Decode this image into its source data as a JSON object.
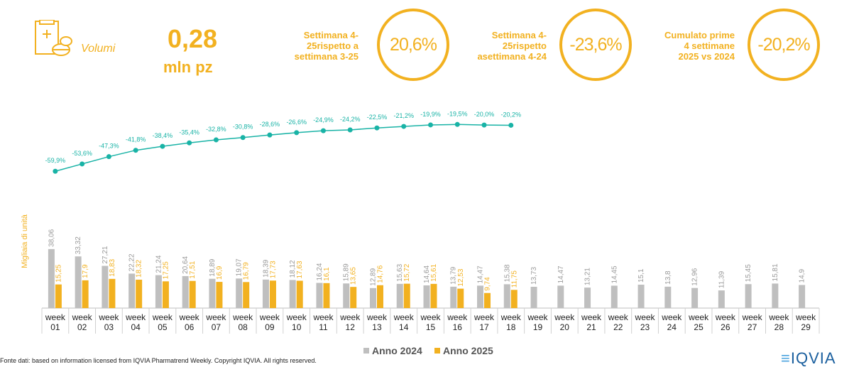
{
  "header": {
    "volume_label": "Volumi",
    "volume_value": "0,28",
    "volume_unit": "mln pz",
    "kpis": [
      {
        "label": "Settimana 4-25rispetto a settimana 3-25",
        "value": "20,6%"
      },
      {
        "label": "Settimana 4-25rispetto asettimana 4-24",
        "value": "-23,6%"
      },
      {
        "label": "Cumulato prime 4 settimane 2025 vs 2024",
        "value": "-20,2%"
      }
    ]
  },
  "chart_data": {
    "type": "bar",
    "y_label": "Migliaia di unità",
    "categories": [
      "week 01",
      "week 02",
      "week 03",
      "week 04",
      "week 05",
      "week 06",
      "week 07",
      "week 08",
      "week 09",
      "week 10",
      "week 11",
      "week 12",
      "week 13",
      "week 14",
      "week 15",
      "week 16",
      "week 17",
      "week 18",
      "week 19",
      "week 20",
      "week 21",
      "week 22",
      "week 23",
      "week 24",
      "week 25",
      "week 26",
      "week 27",
      "week 28",
      "week 29"
    ],
    "ylim": [
      0,
      130
    ],
    "y2lim": [
      -178,
      -4
    ],
    "series": [
      {
        "name": "Anno 2024",
        "color": "#bfbfbf",
        "values": [
          38.06,
          33.32,
          27.21,
          22.22,
          21.24,
          20.64,
          18.89,
          19.07,
          18.39,
          18.12,
          16.24,
          15.89,
          12.89,
          15.63,
          14.64,
          13.79,
          14.47,
          15.38,
          13.73,
          14.47,
          13.21,
          14.45,
          15.1,
          13.8,
          12.96,
          11.39,
          15.45,
          15.81,
          14.9
        ],
        "value_labels": [
          "38,06",
          "33,32",
          "27,21",
          "22,22",
          "21,24",
          "20,64",
          "18,89",
          "19,07",
          "18,39",
          "18,12",
          "16,24",
          "15,89",
          "12,89",
          "15,63",
          "14,64",
          "13,79",
          "14,47",
          "15,38",
          "13,73",
          "14,47",
          "13,21",
          "14,45",
          "15,1",
          "13,8",
          "12,96",
          "11,39",
          "15,45",
          "15,81",
          "14,9"
        ]
      },
      {
        "name": "Anno 2025",
        "color": "#f2b120",
        "values": [
          15.25,
          17.9,
          18.83,
          18.32,
          17.25,
          17.51,
          16.9,
          16.79,
          17.73,
          17.63,
          16.1,
          13.65,
          14.76,
          15.72,
          15.61,
          12.53,
          9.74,
          11.75,
          null,
          null,
          null,
          null,
          null,
          null,
          null,
          null,
          null,
          null,
          null
        ],
        "value_labels": [
          "15,25",
          "17,9",
          "18,83",
          "18,32",
          "17,25",
          "17,51",
          "16,9",
          "16,79",
          "17,73",
          "17,63",
          "16,1",
          "13,65",
          "14,76",
          "15,72",
          "15,61",
          "12,53",
          "9,74",
          "11,75",
          null,
          null,
          null,
          null,
          null,
          null,
          null,
          null,
          null,
          null,
          null
        ]
      },
      {
        "type": "line",
        "axis": "y2",
        "color": "#19b3a6",
        "values": [
          -59.9,
          -53.6,
          -47.3,
          -41.8,
          -38.4,
          -35.4,
          -32.8,
          -30.8,
          -28.6,
          -26.6,
          -24.9,
          -24.2,
          -22.5,
          -21.2,
          -19.9,
          -19.5,
          -20.0,
          -20.2,
          null,
          null,
          null,
          null,
          null,
          null,
          null,
          null,
          null,
          null,
          null
        ],
        "value_labels": [
          "-59,9%",
          "-53,6%",
          "-47,3%",
          "-41,8%",
          "-38,4%",
          "-35,4%",
          "-32,8%",
          "-30,8%",
          "-28,6%",
          "-26,6%",
          "-24,9%",
          "-24,2%",
          "-22,5%",
          "-21,2%",
          "-19,9%",
          "-19,5%",
          "-20,0%",
          "-20,2%",
          null,
          null,
          null,
          null,
          null,
          null,
          null,
          null,
          null,
          null,
          null
        ]
      }
    ]
  },
  "footer": {
    "source": "Fonte dati: based on information licensed from IQVIA Pharmatrend Weekly. Copyright IQVIA. All rights reserved.",
    "logo": "IQVIA"
  }
}
